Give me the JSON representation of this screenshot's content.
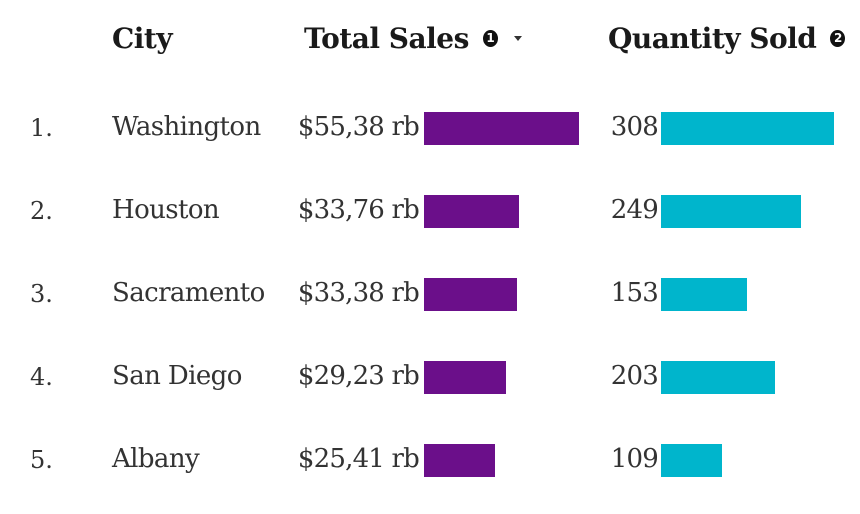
{
  "headers": {
    "city": "City",
    "total_sales": "Total Sales",
    "total_sales_sort_order": "1",
    "quantity_sold": "Quantity Sold",
    "quantity_sold_sort_order": "2"
  },
  "colors": {
    "sales_bar": "#6b0f8a",
    "quantity_bar": "#00b5cc"
  },
  "chart_data": {
    "type": "table",
    "columns": [
      "City",
      "Total Sales",
      "Quantity Sold"
    ],
    "rows": [
      {
        "rank": "1.",
        "city": "Washington",
        "sales_label": "$55,38 rb",
        "sales": 55.38,
        "quantity_label": "308",
        "quantity": 308
      },
      {
        "rank": "2.",
        "city": "Houston",
        "sales_label": "$33,76 rb",
        "sales": 33.76,
        "quantity_label": "249",
        "quantity": 249
      },
      {
        "rank": "3.",
        "city": "Sacramento",
        "sales_label": "$33,38 rb",
        "sales": 33.38,
        "quantity_label": "153",
        "quantity": 153
      },
      {
        "rank": "4.",
        "city": "San Diego",
        "sales_label": "$29,23 rb",
        "sales": 29.23,
        "quantity_label": "203",
        "quantity": 203
      },
      {
        "rank": "5.",
        "city": "Albany",
        "sales_label": "$25,41 rb",
        "sales": 25.41,
        "quantity_label": "109",
        "quantity": 109
      }
    ]
  }
}
